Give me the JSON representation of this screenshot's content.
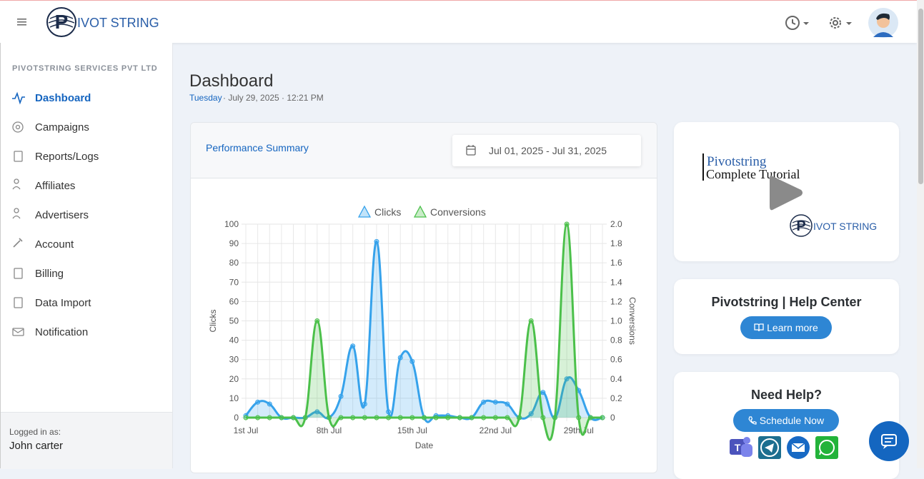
{
  "header": {
    "logo_initial": "P",
    "logo_text": "IVOT STRING"
  },
  "sidebar": {
    "company": "PIVOTSTRING SERVICES PVT LTD",
    "nav": [
      "Dashboard",
      "Campaigns",
      "Reports/Logs",
      "Affiliates",
      "Advertisers",
      "Account",
      "Billing",
      "Data Import",
      "Notification"
    ],
    "logged_in_label": "Logged in as:",
    "user": "John carter"
  },
  "page": {
    "title": "Dashboard",
    "weekday": "Tuesday",
    "datetime": "· July 29, 2025 · 12:21 PM"
  },
  "performance": {
    "title": "Performance Summary",
    "date_range": "Jul 01, 2025 - Jul 31, 2025"
  },
  "chart_data": {
    "type": "line",
    "x_label": "Date",
    "y_label": "Clicks",
    "y2_label": "Conversions",
    "categories": [
      "1st Jul",
      null,
      null,
      null,
      null,
      null,
      null,
      "8th Jul",
      null,
      null,
      null,
      null,
      null,
      null,
      "15th Jul",
      null,
      null,
      null,
      null,
      null,
      null,
      "22nd Jul",
      null,
      null,
      null,
      null,
      null,
      null,
      "29th Jul",
      null,
      null
    ],
    "series": [
      {
        "name": "Clicks",
        "color": "#36a2eb",
        "values": [
          1,
          8,
          7,
          0,
          0,
          0,
          3,
          0,
          11,
          37,
          7,
          91,
          3,
          31,
          29,
          0,
          1,
          1,
          0,
          0,
          8,
          8,
          7,
          0,
          2,
          13,
          0,
          20,
          14,
          0,
          0
        ]
      },
      {
        "name": "Conversions",
        "color": "#4bc04a",
        "axis": "y2",
        "values": [
          0,
          0,
          0,
          0,
          0,
          0,
          1,
          0,
          0,
          0,
          0,
          0,
          0,
          0,
          0,
          0,
          0,
          0,
          0,
          0,
          0,
          0,
          0,
          0,
          1,
          0,
          0,
          2,
          0,
          0,
          0
        ]
      }
    ],
    "ylim": [
      0,
      100
    ],
    "yticks": [
      0,
      10,
      20,
      30,
      40,
      50,
      60,
      70,
      80,
      90,
      100
    ],
    "y2lim": [
      0,
      2
    ],
    "y2ticks": [
      0,
      0.2,
      0.4,
      0.6,
      0.8,
      {
        "value": 1,
        "label": "1.0"
      },
      1.2,
      1.4,
      1.6,
      1.8,
      {
        "value": 2,
        "label": "2.0"
      }
    ],
    "grid": true,
    "fill": true
  },
  "tutorial": {
    "line1": "Pivotstring",
    "line2": "Complete Tutorial",
    "logo_initial": "P",
    "logo_text": "IVOT STRING"
  },
  "help_center": {
    "title": "Pivotstring | Help Center",
    "button": "Learn more"
  },
  "need_help": {
    "title": "Need Help?",
    "button": "Schedule Now"
  }
}
